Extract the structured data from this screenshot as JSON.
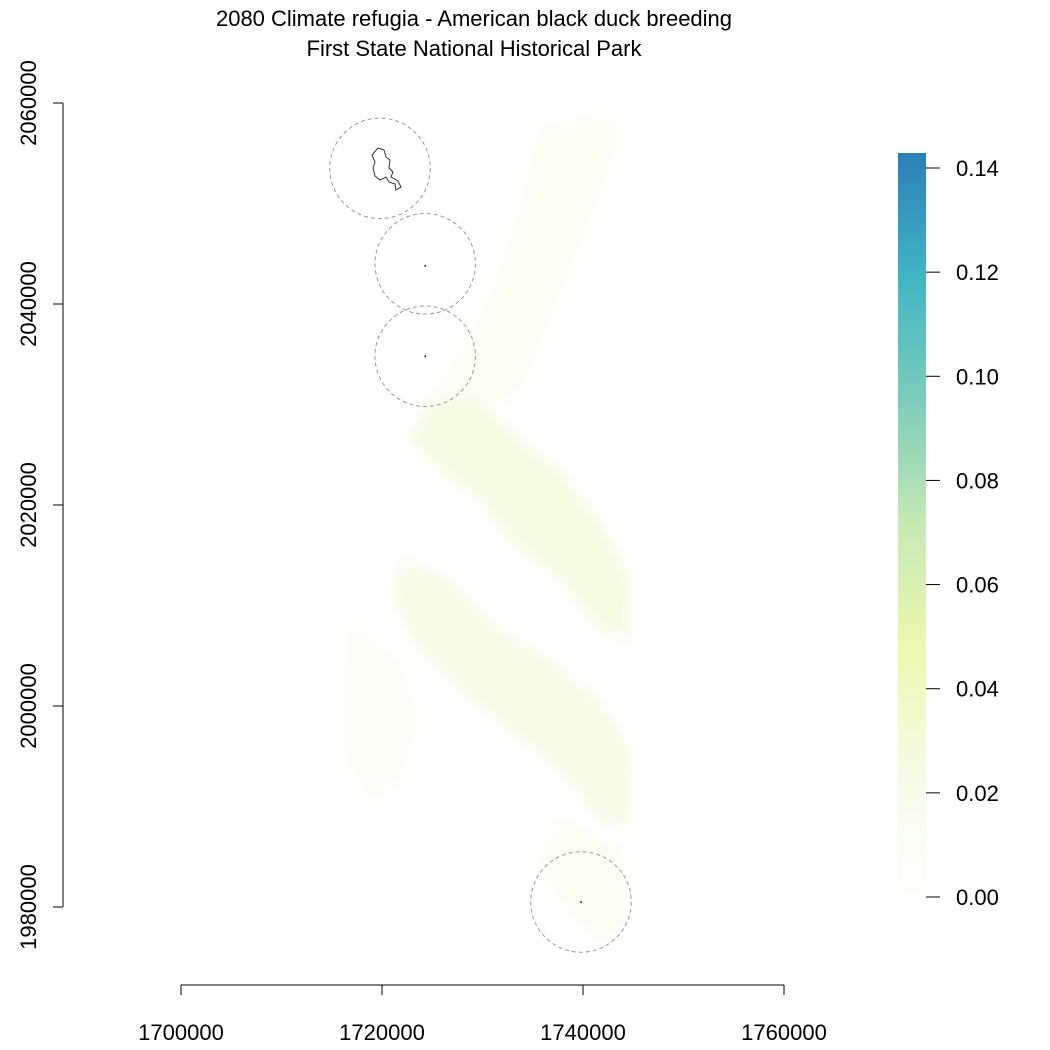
{
  "title_line1": "2080 Climate refugia - American black duck breeding",
  "title_line2": "First State National Historical Park",
  "x_axis": {
    "range": [
      1700000,
      1760000
    ],
    "ticks": [
      1700000,
      1720000,
      1740000,
      1760000
    ],
    "tick_labels": [
      "1700000",
      "1720000",
      "1740000",
      "1760000"
    ]
  },
  "y_axis": {
    "range": [
      1980000,
      2060000
    ],
    "ticks": [
      1980000,
      2000000,
      2020000,
      2040000,
      2060000
    ],
    "tick_labels": [
      "1980000",
      "2000000",
      "2020000",
      "2040000",
      "2060000"
    ]
  },
  "legend": {
    "range": [
      0,
      0.14
    ],
    "ticks": [
      0,
      0.02,
      0.04,
      0.06,
      0.08,
      0.1,
      0.12,
      0.14
    ],
    "tick_labels": [
      "0.00",
      "0.02",
      "0.04",
      "0.06",
      "0.08",
      "0.10",
      "0.12",
      "0.14"
    ],
    "colors": [
      "#ffffff",
      "#f6fbe6",
      "#edf8b1",
      "#c7e9b4",
      "#7fcdbb",
      "#41b6c4",
      "#2c7fb8"
    ]
  },
  "buffers": [
    {
      "name": "buffer-north",
      "cx": 1719800,
      "cy": 2053500,
      "r": 5000
    },
    {
      "name": "buffer-middle-upper",
      "cx": 1724300,
      "cy": 2044000,
      "r": 5000
    },
    {
      "name": "buffer-middle-lower",
      "cx": 1724300,
      "cy": 2034800,
      "r": 5000
    },
    {
      "name": "buffer-south",
      "cx": 1739800,
      "cy": 1980500,
      "r": 5000
    }
  ],
  "park_units": [
    {
      "name": "park-unit-middle-upper",
      "x": 1724300,
      "y": 2043800
    },
    {
      "name": "park-unit-middle-lower",
      "x": 1724300,
      "y": 2034800
    },
    {
      "name": "park-unit-south",
      "x": 1739800,
      "y": 1980500
    }
  ],
  "chart_data": {
    "type": "heatmap",
    "title": "2080 Climate refugia - American black duck breeding\nFirst State National Historical Park",
    "xlim": [
      1700000,
      1760000
    ],
    "ylim": [
      1980000,
      2060000
    ],
    "value_range": [
      0,
      0.14
    ],
    "grid": false,
    "legend_placement": "right"
  }
}
